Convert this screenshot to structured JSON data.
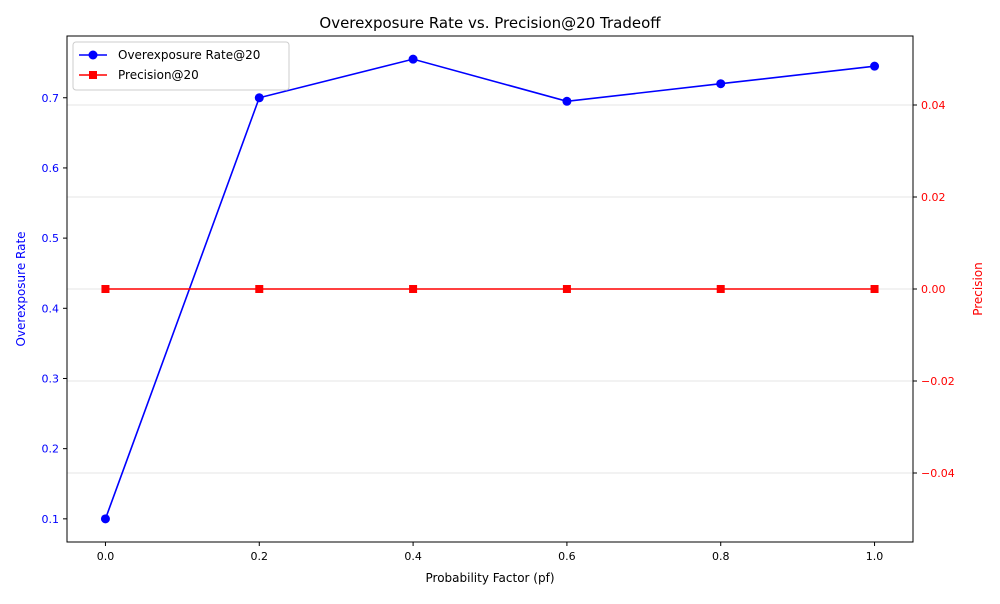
{
  "chart_data": {
    "type": "line",
    "title": "Overexposure Rate vs. Precision@20 Tradeoff",
    "xlabel": "Probability Factor (pf)",
    "ylabel_left": "Overexposure Rate",
    "ylabel_right": "Precision",
    "x": [
      0.0,
      0.2,
      0.4,
      0.6,
      0.8,
      1.0
    ],
    "xlim": [
      -0.05,
      1.05
    ],
    "xticks": [
      0.0,
      0.2,
      0.4,
      0.6,
      0.8,
      1.0
    ],
    "xtick_labels": [
      "0.0",
      "0.2",
      "0.4",
      "0.6",
      "0.8",
      "1.0"
    ],
    "ylim_left": [
      0.067,
      0.788
    ],
    "yticks_left": [
      0.1,
      0.2,
      0.3,
      0.4,
      0.5,
      0.6,
      0.7
    ],
    "ytick_labels_left": [
      "0.1",
      "0.2",
      "0.3",
      "0.4",
      "0.5",
      "0.6",
      "0.7"
    ],
    "ylim_right": [
      -0.055,
      0.055
    ],
    "yticks_right": [
      -0.04,
      -0.02,
      0.0,
      0.02,
      0.04
    ],
    "ytick_labels_right": [
      "−0.04",
      "−0.02",
      "0.00",
      "0.02",
      "0.04"
    ],
    "grid": true,
    "legend_position": "top-left",
    "series": [
      {
        "name": "Overexposure Rate@20",
        "axis": "left",
        "marker": "circle",
        "color": "#0000ff",
        "values": [
          0.1,
          0.7,
          0.755,
          0.695,
          0.72,
          0.745
        ]
      },
      {
        "name": "Precision@20",
        "axis": "right",
        "marker": "square",
        "color": "#ff0000",
        "values": [
          0.0,
          0.0,
          0.0,
          0.0,
          0.0,
          0.0
        ]
      }
    ],
    "left_axis_color": "#0000ff",
    "right_axis_color": "#ff0000"
  }
}
